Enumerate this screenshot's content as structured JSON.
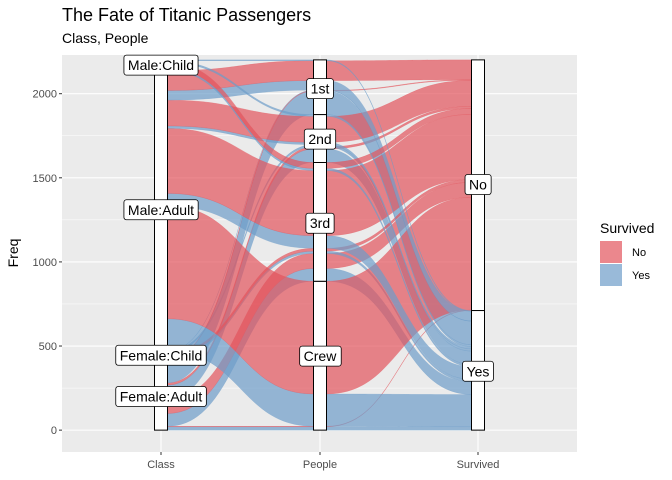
{
  "chart_data": {
    "type": "alluvial",
    "title": "The Fate of Titanic Passengers",
    "subtitle": "Class, People",
    "ylabel": "Freq",
    "xlabel": "",
    "ylim": [
      -130,
      2230
    ],
    "y_ticks": [
      0,
      500,
      1000,
      1500,
      2000
    ],
    "axes": [
      "Class",
      "People",
      "Survived"
    ],
    "legend": {
      "title": "Survived",
      "position": "right",
      "entries": [
        {
          "name": "No",
          "color": "#e3545c"
        },
        {
          "name": "Yes",
          "color": "#6d9dc9"
        }
      ]
    },
    "stratum_labels": {
      "Class": [
        {
          "label": "Female:Adult",
          "value": 200
        },
        {
          "label": "Female:Child",
          "value": 445
        },
        {
          "label": "Male:Adult",
          "value": 1310
        },
        {
          "label": "Male:Child",
          "value": 2170
        }
      ],
      "People": [
        {
          "label": "Crew",
          "value": 440
        },
        {
          "label": "3rd",
          "value": 1230
        },
        {
          "label": "2nd",
          "value": 1730
        },
        {
          "label": "1st",
          "value": 2030
        }
      ],
      "Survived": [
        {
          "label": "Yes",
          "value": 350
        },
        {
          "label": "No",
          "value": 1460
        }
      ]
    },
    "strata": {
      "Class": [
        {
          "name": "Female:Adult",
          "count": 425
        },
        {
          "name": "Female:Child",
          "count": 45
        },
        {
          "name": "Male:Adult",
          "count": 1667
        },
        {
          "name": "Male:Child",
          "count": 64
        }
      ],
      "People": [
        {
          "name": "Crew",
          "count": 885
        },
        {
          "name": "3rd",
          "count": 706
        },
        {
          "name": "2nd",
          "count": 285
        },
        {
          "name": "1st",
          "count": 325
        }
      ],
      "Survived": [
        {
          "name": "Yes",
          "count": 711
        },
        {
          "name": "No",
          "count": 1490
        }
      ]
    },
    "groups": [
      {
        "sex": "Female",
        "age": "Adult",
        "class": "Crew",
        "survived": "Yes",
        "freq": 20
      },
      {
        "sex": "Female",
        "age": "Adult",
        "class": "Crew",
        "survived": "No",
        "freq": 3
      },
      {
        "sex": "Female",
        "age": "Adult",
        "class": "3rd",
        "survived": "Yes",
        "freq": 76
      },
      {
        "sex": "Female",
        "age": "Adult",
        "class": "3rd",
        "survived": "No",
        "freq": 89
      },
      {
        "sex": "Female",
        "age": "Adult",
        "class": "2nd",
        "survived": "Yes",
        "freq": 80
      },
      {
        "sex": "Female",
        "age": "Adult",
        "class": "2nd",
        "survived": "No",
        "freq": 13
      },
      {
        "sex": "Female",
        "age": "Adult",
        "class": "1st",
        "survived": "Yes",
        "freq": 140
      },
      {
        "sex": "Female",
        "age": "Adult",
        "class": "1st",
        "survived": "No",
        "freq": 4
      },
      {
        "sex": "Female",
        "age": "Child",
        "class": "3rd",
        "survived": "Yes",
        "freq": 14
      },
      {
        "sex": "Female",
        "age": "Child",
        "class": "3rd",
        "survived": "No",
        "freq": 17
      },
      {
        "sex": "Female",
        "age": "Child",
        "class": "2nd",
        "survived": "Yes",
        "freq": 13
      },
      {
        "sex": "Female",
        "age": "Child",
        "class": "1st",
        "survived": "Yes",
        "freq": 1
      },
      {
        "sex": "Male",
        "age": "Adult",
        "class": "Crew",
        "survived": "Yes",
        "freq": 192
      },
      {
        "sex": "Male",
        "age": "Adult",
        "class": "Crew",
        "survived": "No",
        "freq": 670
      },
      {
        "sex": "Male",
        "age": "Adult",
        "class": "3rd",
        "survived": "Yes",
        "freq": 75
      },
      {
        "sex": "Male",
        "age": "Adult",
        "class": "3rd",
        "survived": "No",
        "freq": 387
      },
      {
        "sex": "Male",
        "age": "Adult",
        "class": "2nd",
        "survived": "Yes",
        "freq": 14
      },
      {
        "sex": "Male",
        "age": "Adult",
        "class": "2nd",
        "survived": "No",
        "freq": 154
      },
      {
        "sex": "Male",
        "age": "Adult",
        "class": "1st",
        "survived": "Yes",
        "freq": 57
      },
      {
        "sex": "Male",
        "age": "Adult",
        "class": "1st",
        "survived": "No",
        "freq": 118
      },
      {
        "sex": "Male",
        "age": "Child",
        "class": "3rd",
        "survived": "Yes",
        "freq": 13
      },
      {
        "sex": "Male",
        "age": "Child",
        "class": "3rd",
        "survived": "No",
        "freq": 35
      },
      {
        "sex": "Male",
        "age": "Child",
        "class": "2nd",
        "survived": "Yes",
        "freq": 11
      },
      {
        "sex": "Male",
        "age": "Child",
        "class": "1st",
        "survived": "Yes",
        "freq": 5
      }
    ]
  }
}
